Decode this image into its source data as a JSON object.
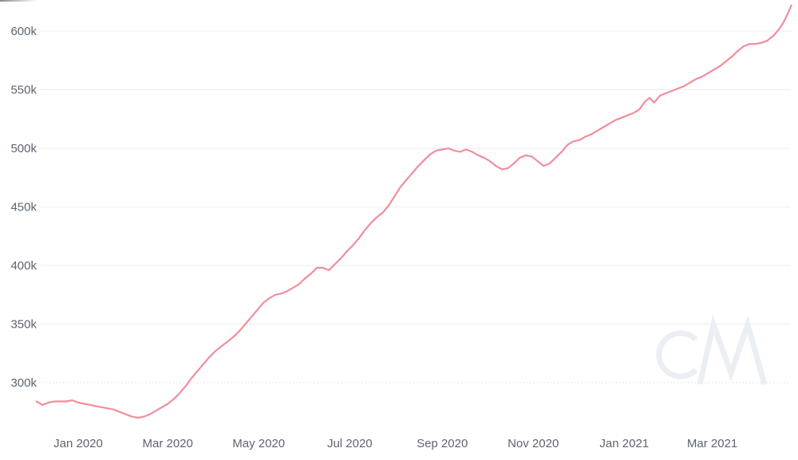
{
  "watermark": {
    "text": "CM"
  },
  "colors": {
    "line": "#F18E9B",
    "gridline": "#ededed",
    "gridline_dotted": "#dcdcdc",
    "axis_text": "#5d6470",
    "watermark": "#ebeef4",
    "background": "#ffffff"
  },
  "chart_data": {
    "type": "line",
    "unit": "thousands (k)",
    "grid": true,
    "legend": false,
    "y_axis": {
      "ticks": [
        {
          "label": "300k",
          "value": 300,
          "dotted": true
        },
        {
          "label": "350k",
          "value": 350,
          "dotted": false
        },
        {
          "label": "400k",
          "value": 400,
          "dotted": false
        },
        {
          "label": "450k",
          "value": 450,
          "dotted": false
        },
        {
          "label": "500k",
          "value": 500,
          "dotted": false
        },
        {
          "label": "550k",
          "value": 550,
          "dotted": false
        },
        {
          "label": "600k",
          "value": 600,
          "dotted": false
        }
      ],
      "visible_range_k": [
        255,
        625
      ]
    },
    "x_axis": {
      "ticks": [
        {
          "label": "Jan 2020",
          "date": "2020-01-01"
        },
        {
          "label": "Mar 2020",
          "date": "2020-03-01"
        },
        {
          "label": "May 2020",
          "date": "2020-05-01"
        },
        {
          "label": "Jul 2020",
          "date": "2020-07-01"
        },
        {
          "label": "Sep 2020",
          "date": "2020-09-01"
        },
        {
          "label": "Nov 2020",
          "date": "2020-11-01"
        },
        {
          "label": "Jan 2021",
          "date": "2021-01-01"
        },
        {
          "label": "Mar 2021",
          "date": "2021-03-01"
        }
      ],
      "visible_range": [
        "2019-12-04",
        "2021-04-23"
      ]
    },
    "series": [
      {
        "name": "metric-value",
        "color": "#F18E9B",
        "points": [
          [
            "2019-12-04",
            284
          ],
          [
            "2019-12-08",
            281
          ],
          [
            "2019-12-12",
            283
          ],
          [
            "2019-12-16",
            284
          ],
          [
            "2019-12-20",
            284
          ],
          [
            "2019-12-24",
            284
          ],
          [
            "2019-12-28",
            285
          ],
          [
            "2020-01-01",
            283
          ],
          [
            "2020-01-05",
            282
          ],
          [
            "2020-01-09",
            281
          ],
          [
            "2020-01-13",
            280
          ],
          [
            "2020-01-17",
            279
          ],
          [
            "2020-01-21",
            278
          ],
          [
            "2020-01-25",
            277
          ],
          [
            "2020-01-29",
            275
          ],
          [
            "2020-02-02",
            273
          ],
          [
            "2020-02-06",
            271
          ],
          [
            "2020-02-10",
            270
          ],
          [
            "2020-02-14",
            271
          ],
          [
            "2020-02-18",
            273
          ],
          [
            "2020-02-22",
            276
          ],
          [
            "2020-02-26",
            279
          ],
          [
            "2020-03-01",
            282
          ],
          [
            "2020-03-05",
            286
          ],
          [
            "2020-03-09",
            291
          ],
          [
            "2020-03-13",
            297
          ],
          [
            "2020-03-17",
            304
          ],
          [
            "2020-03-21",
            310
          ],
          [
            "2020-03-25",
            316
          ],
          [
            "2020-03-29",
            322
          ],
          [
            "2020-04-02",
            327
          ],
          [
            "2020-04-06",
            331
          ],
          [
            "2020-04-10",
            335
          ],
          [
            "2020-04-14",
            339
          ],
          [
            "2020-04-18",
            344
          ],
          [
            "2020-04-22",
            350
          ],
          [
            "2020-04-26",
            356
          ],
          [
            "2020-04-30",
            362
          ],
          [
            "2020-05-04",
            368
          ],
          [
            "2020-05-08",
            372
          ],
          [
            "2020-05-12",
            375
          ],
          [
            "2020-05-16",
            376
          ],
          [
            "2020-05-20",
            378
          ],
          [
            "2020-05-24",
            381
          ],
          [
            "2020-05-28",
            384
          ],
          [
            "2020-06-01",
            389
          ],
          [
            "2020-06-05",
            393
          ],
          [
            "2020-06-09",
            398
          ],
          [
            "2020-06-13",
            398
          ],
          [
            "2020-06-17",
            396
          ],
          [
            "2020-06-21",
            401
          ],
          [
            "2020-06-25",
            406
          ],
          [
            "2020-06-29",
            412
          ],
          [
            "2020-07-03",
            417
          ],
          [
            "2020-07-07",
            423
          ],
          [
            "2020-07-11",
            430
          ],
          [
            "2020-07-15",
            436
          ],
          [
            "2020-07-19",
            441
          ],
          [
            "2020-07-23",
            445
          ],
          [
            "2020-07-27",
            451
          ],
          [
            "2020-07-31",
            459
          ],
          [
            "2020-08-04",
            467
          ],
          [
            "2020-08-08",
            473
          ],
          [
            "2020-08-12",
            479
          ],
          [
            "2020-08-16",
            485
          ],
          [
            "2020-08-20",
            490
          ],
          [
            "2020-08-24",
            495
          ],
          [
            "2020-08-28",
            498
          ],
          [
            "2020-09-01",
            499
          ],
          [
            "2020-09-05",
            500
          ],
          [
            "2020-09-09",
            498
          ],
          [
            "2020-09-13",
            497
          ],
          [
            "2020-09-17",
            499
          ],
          [
            "2020-09-21",
            497
          ],
          [
            "2020-09-25",
            494
          ],
          [
            "2020-09-29",
            492
          ],
          [
            "2020-10-03",
            489
          ],
          [
            "2020-10-07",
            485
          ],
          [
            "2020-10-11",
            482
          ],
          [
            "2020-10-15",
            483
          ],
          [
            "2020-10-19",
            487
          ],
          [
            "2020-10-23",
            492
          ],
          [
            "2020-10-27",
            494
          ],
          [
            "2020-10-31",
            493
          ],
          [
            "2020-11-04",
            489
          ],
          [
            "2020-11-08",
            485
          ],
          [
            "2020-11-12",
            487
          ],
          [
            "2020-11-16",
            492
          ],
          [
            "2020-11-20",
            497
          ],
          [
            "2020-11-24",
            503
          ],
          [
            "2020-11-28",
            506
          ],
          [
            "2020-12-02",
            507
          ],
          [
            "2020-12-06",
            510
          ],
          [
            "2020-12-10",
            512
          ],
          [
            "2020-12-14",
            515
          ],
          [
            "2020-12-18",
            518
          ],
          [
            "2020-12-22",
            521
          ],
          [
            "2020-12-26",
            524
          ],
          [
            "2020-12-30",
            526
          ],
          [
            "2021-01-03",
            528
          ],
          [
            "2021-01-07",
            530
          ],
          [
            "2021-01-11",
            533
          ],
          [
            "2021-01-15",
            540
          ],
          [
            "2021-01-18",
            543
          ],
          [
            "2021-01-21",
            539
          ],
          [
            "2021-01-25",
            545
          ],
          [
            "2021-01-29",
            547
          ],
          [
            "2021-02-02",
            549
          ],
          [
            "2021-02-06",
            551
          ],
          [
            "2021-02-10",
            553
          ],
          [
            "2021-02-14",
            556
          ],
          [
            "2021-02-18",
            559
          ],
          [
            "2021-02-22",
            561
          ],
          [
            "2021-02-26",
            564
          ],
          [
            "2021-03-02",
            567
          ],
          [
            "2021-03-06",
            570
          ],
          [
            "2021-03-10",
            574
          ],
          [
            "2021-03-14",
            578
          ],
          [
            "2021-03-18",
            583
          ],
          [
            "2021-03-22",
            587
          ],
          [
            "2021-03-26",
            589
          ],
          [
            "2021-03-30",
            589
          ],
          [
            "2021-04-03",
            590
          ],
          [
            "2021-04-07",
            592
          ],
          [
            "2021-04-11",
            596
          ],
          [
            "2021-04-15",
            602
          ],
          [
            "2021-04-18",
            608
          ],
          [
            "2021-04-21",
            616
          ],
          [
            "2021-04-23",
            622
          ]
        ]
      }
    ]
  }
}
